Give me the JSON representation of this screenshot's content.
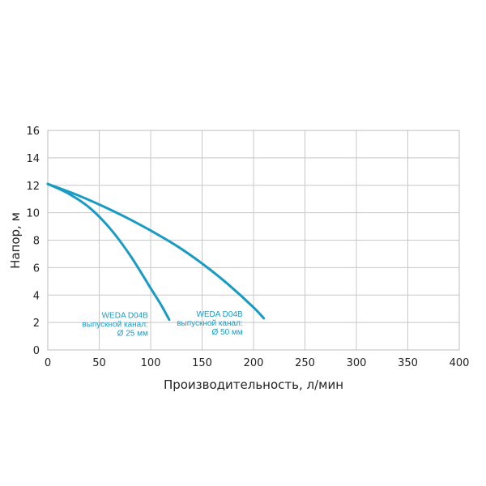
{
  "chart_data": {
    "type": "line",
    "xlabel": "Производительность, л/мин",
    "ylabel": "Напор, м",
    "xlim": [
      0,
      400
    ],
    "ylim": [
      0,
      16
    ],
    "xticks": [
      0,
      50,
      100,
      150,
      200,
      250,
      300,
      350,
      400
    ],
    "yticks": [
      0,
      2,
      4,
      6,
      8,
      10,
      12,
      14,
      16
    ],
    "grid": true,
    "series_color": "#1a9bc4",
    "series": [
      {
        "name": "WEDA D04B",
        "label_lines": [
          "WEDA D04B",
          "выпускной канал:",
          "Ø 25 мм"
        ],
        "x": [
          0,
          20,
          40,
          60,
          80,
          100,
          110,
          118
        ],
        "y": [
          12.1,
          11.4,
          10.4,
          8.9,
          6.9,
          4.5,
          3.3,
          2.2
        ]
      },
      {
        "name": "WEDA D04B",
        "label_lines": [
          "WEDA D04B",
          "выпускной канал:",
          "Ø 50 мм"
        ],
        "x": [
          0,
          25,
          50,
          75,
          100,
          125,
          150,
          175,
          200,
          210
        ],
        "y": [
          12.1,
          11.4,
          10.6,
          9.7,
          8.7,
          7.6,
          6.3,
          4.8,
          3.1,
          2.3
        ]
      }
    ]
  }
}
